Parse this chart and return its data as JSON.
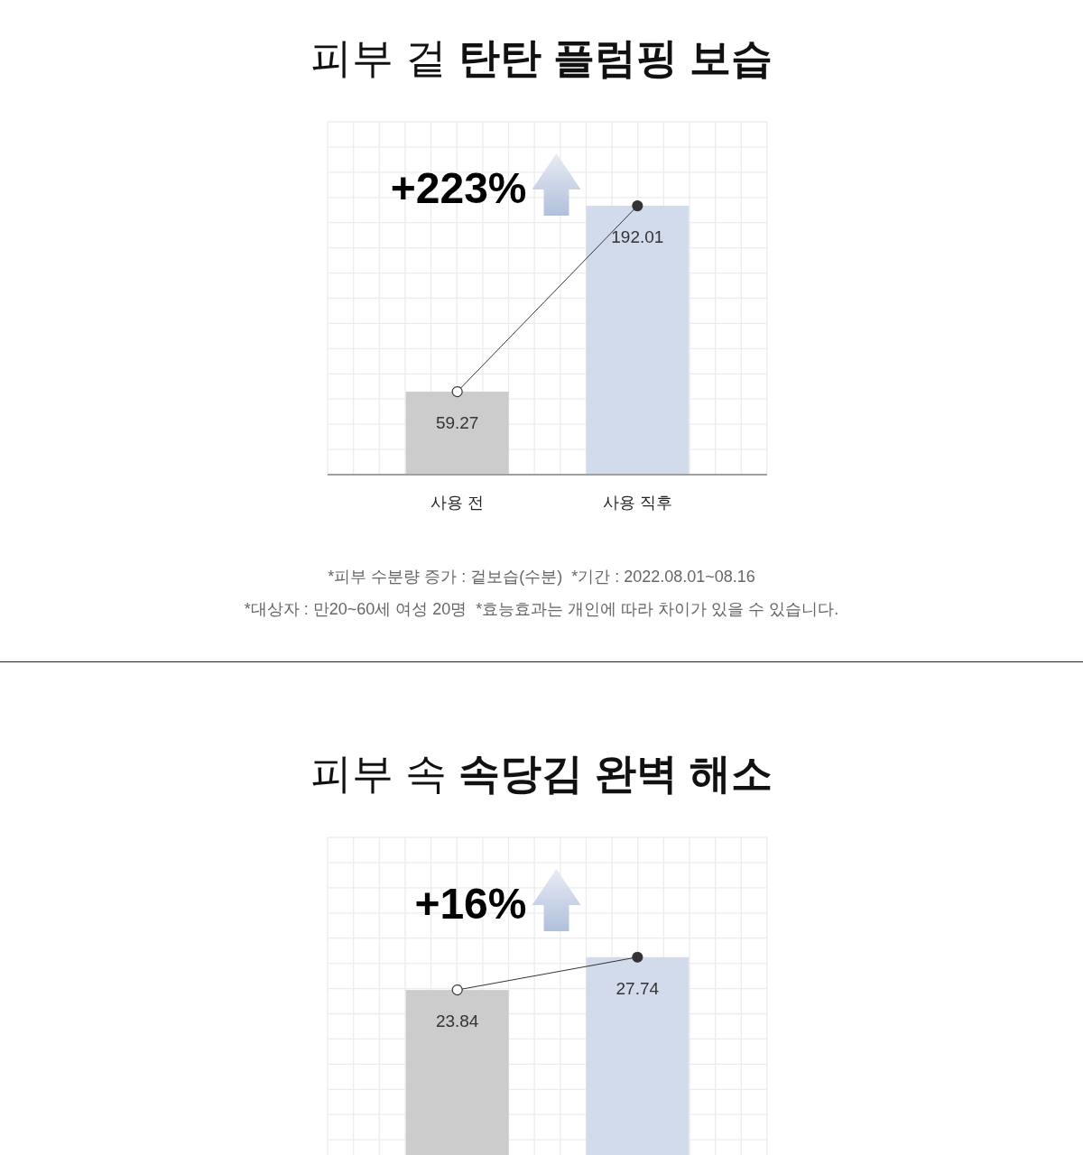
{
  "chart_data": [
    {
      "type": "bar",
      "title": "피부 겉 탄탄 플럼핑 보습",
      "categories": [
        "사용 전",
        "사용 직후"
      ],
      "series": [
        {
          "colors": [
            "#cccccc",
            "#d2dbeb"
          ],
          "values": [
            59.27,
            192.01
          ],
          "value_labels": [
            "59.27",
            "192.01"
          ]
        },
        {
          "type": "line",
          "color": "#333333",
          "colors": [
            "#ffffff",
            "#333333"
          ],
          "values": [
            59.27,
            192.01
          ]
        }
      ],
      "marker": "circle",
      "ylim": [
        0,
        252
      ],
      "yticks": [
        {
          "value": 0,
          "label": null
        },
        {
          "value": 18,
          "label": null
        },
        {
          "value": 36,
          "label": null
        },
        {
          "value": 54,
          "label": null
        },
        {
          "value": 72,
          "label": null
        },
        {
          "value": 90,
          "label": null
        },
        {
          "value": 108,
          "label": null
        },
        {
          "value": 126,
          "label": null
        },
        {
          "value": 144,
          "label": null
        },
        {
          "value": 162,
          "label": null
        },
        {
          "value": 180,
          "label": null
        },
        {
          "value": 198,
          "label": null
        },
        {
          "value": 216,
          "label": null
        },
        {
          "value": 234,
          "label": null
        },
        {
          "value": 252,
          "label": null
        }
      ],
      "grid": true,
      "tick_labels": "x",
      "annotations": [
        "+223%",
        "*피부 수분량 증가 : 겉보습(수분)  *기간 : 2022.08.01~08.16",
        "*대상자 : 만20~60세 여성 20명  *효능효과는 개인에 따라 차이가 있을 수 있습니다."
      ]
    },
    {
      "type": "bar",
      "title": "피부 속 속당김 완벽 해소",
      "categories": [
        null,
        null
      ],
      "series": [
        {
          "colors": [
            "#cccccc",
            "#d2dbeb"
          ],
          "values": [
            23.84,
            27.74
          ],
          "value_labels": [
            "23.84",
            "27.74"
          ]
        },
        {
          "type": "line",
          "color": "#333333",
          "colors": [
            "#ffffff",
            "#333333"
          ],
          "values": [
            23.84,
            27.74
          ]
        }
      ],
      "marker": "circle",
      "ylim": [
        0,
        42
      ],
      "yticks": [
        {
          "value": 6,
          "label": null
        },
        {
          "value": 9,
          "label": null
        },
        {
          "value": 12,
          "label": null
        },
        {
          "value": 15,
          "label": null
        },
        {
          "value": 18,
          "label": null
        },
        {
          "value": 21,
          "label": null
        },
        {
          "value": 24,
          "label": null
        },
        {
          "value": 27,
          "label": null
        },
        {
          "value": 30,
          "label": null
        },
        {
          "value": 33,
          "label": null
        },
        {
          "value": 36,
          "label": null
        },
        {
          "value": 39,
          "label": null
        },
        {
          "value": 42,
          "label": null
        }
      ],
      "grid": true,
      "tick_labels": false,
      "annotations": [
        "+16%"
      ]
    }
  ]
}
